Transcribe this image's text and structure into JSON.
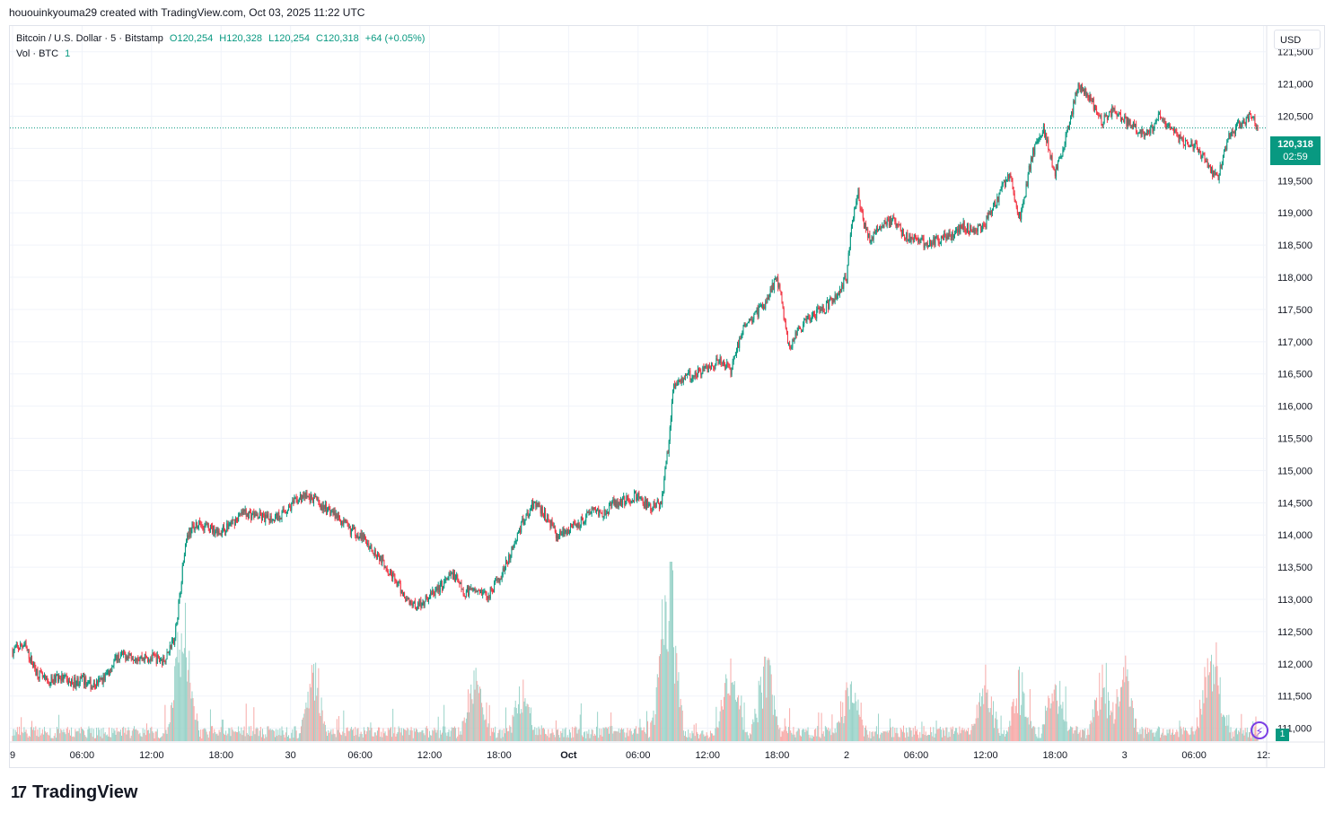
{
  "header": {
    "credit": "hououinkyouma29 created with TradingView.com, Oct 03, 2025 11:22 UTC"
  },
  "legend": {
    "symbol": "Bitcoin / U.S. Dollar · 5 · Bitstamp",
    "open": "O120,254",
    "high": "H120,328",
    "low": "L120,254",
    "close": "C120,318",
    "change": "+64 (+0.05%)",
    "volume_label": "Vol · BTC",
    "volume_value": "1"
  },
  "currency": "USD",
  "last_price": {
    "price": "120,318",
    "countdown": "02:59",
    "volume": "1"
  },
  "footer": {
    "brand": "TradingView",
    "brand_mark": "17"
  },
  "colors": {
    "up": "#089981",
    "down": "#f23645",
    "vol_up": "#9ad3c9",
    "vol_down": "#f7a9a7",
    "grid": "#f0f3fa",
    "text": "#131722"
  },
  "chart_data": {
    "type": "candlestick",
    "title": "Bitcoin / U.S. Dollar · 5 · Bitstamp",
    "ylim": [
      110800,
      121900
    ],
    "y_ticks": [
      111000,
      111500,
      112000,
      112500,
      113000,
      113500,
      114000,
      114500,
      115000,
      115500,
      116000,
      116500,
      117000,
      117500,
      118000,
      118500,
      119000,
      119500,
      120000,
      120500,
      121000,
      121500
    ],
    "y_tick_labels": [
      "111,000",
      "111,500",
      "112,000",
      "112,500",
      "113,000",
      "113,500",
      "114,000",
      "114,500",
      "115,000",
      "115,500",
      "116,000",
      "116,500",
      "117,000",
      "117,500",
      "118,000",
      "118,500",
      "119,000",
      "119,500",
      "120,000",
      "120,500",
      "121,000",
      "121,500"
    ],
    "x_ticks": [
      {
        "t": 0,
        "label": "9"
      },
      {
        "t": 6,
        "label": "06:00"
      },
      {
        "t": 12,
        "label": "12:00"
      },
      {
        "t": 18,
        "label": "18:00"
      },
      {
        "t": 24,
        "label": "30"
      },
      {
        "t": 30,
        "label": "06:00"
      },
      {
        "t": 36,
        "label": "12:00"
      },
      {
        "t": 42,
        "label": "18:00"
      },
      {
        "t": 48,
        "label": "Oct"
      },
      {
        "t": 54,
        "label": "06:00"
      },
      {
        "t": 60,
        "label": "12:00"
      },
      {
        "t": 66,
        "label": "18:00"
      },
      {
        "t": 72,
        "label": "2"
      },
      {
        "t": 78,
        "label": "06:00"
      },
      {
        "t": 84,
        "label": "12:00"
      },
      {
        "t": 90,
        "label": "18:00"
      },
      {
        "t": 96,
        "label": "3"
      },
      {
        "t": 102,
        "label": "06:00"
      },
      {
        "t": 108,
        "label": "12:"
      }
    ],
    "x_range_hours": [
      0,
      107.5
    ],
    "price_path": [
      [
        0,
        112200
      ],
      [
        1,
        112300
      ],
      [
        2,
        111900
      ],
      [
        3,
        111700
      ],
      [
        4,
        111800
      ],
      [
        5,
        111700
      ],
      [
        6,
        111750
      ],
      [
        7,
        111650
      ],
      [
        8,
        111800
      ],
      [
        9,
        112100
      ],
      [
        10,
        112150
      ],
      [
        11,
        112100
      ],
      [
        12,
        112100
      ],
      [
        13,
        112050
      ],
      [
        14,
        112400
      ],
      [
        14.5,
        113200
      ],
      [
        15,
        114000
      ],
      [
        16,
        114200
      ],
      [
        17,
        114100
      ],
      [
        18,
        114050
      ],
      [
        19,
        114200
      ],
      [
        20,
        114350
      ],
      [
        21,
        114300
      ],
      [
        22,
        114250
      ],
      [
        23,
        114300
      ],
      [
        24,
        114450
      ],
      [
        25,
        114600
      ],
      [
        26,
        114550
      ],
      [
        27,
        114400
      ],
      [
        28,
        114300
      ],
      [
        29,
        114100
      ],
      [
        30,
        114000
      ],
      [
        31,
        113800
      ],
      [
        32,
        113600
      ],
      [
        33,
        113300
      ],
      [
        34,
        113000
      ],
      [
        35,
        112900
      ],
      [
        36,
        113050
      ],
      [
        37,
        113200
      ],
      [
        38,
        113400
      ],
      [
        39,
        113100
      ],
      [
        40,
        113200
      ],
      [
        41,
        113050
      ],
      [
        42,
        113300
      ],
      [
        43,
        113700
      ],
      [
        44,
        114200
      ],
      [
        45,
        114500
      ],
      [
        46,
        114300
      ],
      [
        47,
        114000
      ],
      [
        48,
        114100
      ],
      [
        49,
        114200
      ],
      [
        50,
        114400
      ],
      [
        51,
        114350
      ],
      [
        52,
        114500
      ],
      [
        53,
        114550
      ],
      [
        54,
        114600
      ],
      [
        55,
        114400
      ],
      [
        56,
        114500
      ],
      [
        56.7,
        115500
      ],
      [
        57,
        116300
      ],
      [
        58,
        116450
      ],
      [
        59,
        116500
      ],
      [
        60,
        116600
      ],
      [
        61,
        116700
      ],
      [
        62,
        116550
      ],
      [
        63,
        117200
      ],
      [
        64,
        117400
      ],
      [
        65,
        117600
      ],
      [
        66,
        118000
      ],
      [
        66.7,
        117300
      ],
      [
        67,
        116900
      ],
      [
        68,
        117200
      ],
      [
        69,
        117400
      ],
      [
        70,
        117500
      ],
      [
        71,
        117700
      ],
      [
        72,
        118000
      ],
      [
        72.5,
        118900
      ],
      [
        73,
        119300
      ],
      [
        73.5,
        118800
      ],
      [
        74,
        118600
      ],
      [
        75,
        118800
      ],
      [
        76,
        118900
      ],
      [
        77,
        118650
      ],
      [
        78,
        118600
      ],
      [
        79,
        118500
      ],
      [
        80,
        118600
      ],
      [
        81,
        118650
      ],
      [
        82,
        118800
      ],
      [
        83,
        118700
      ],
      [
        84,
        118850
      ],
      [
        85,
        119200
      ],
      [
        86,
        119600
      ],
      [
        87,
        118900
      ],
      [
        88,
        119900
      ],
      [
        89,
        120300
      ],
      [
        90,
        119600
      ],
      [
        91,
        120200
      ],
      [
        92,
        121000
      ],
      [
        93,
        120800
      ],
      [
        94,
        120400
      ],
      [
        95,
        120600
      ],
      [
        96,
        120450
      ],
      [
        97,
        120300
      ],
      [
        98,
        120200
      ],
      [
        99,
        120500
      ],
      [
        100,
        120300
      ],
      [
        101,
        120100
      ],
      [
        102,
        120050
      ],
      [
        103,
        119800
      ],
      [
        104,
        119500
      ],
      [
        105,
        120200
      ],
      [
        106,
        120400
      ],
      [
        107,
        120500
      ],
      [
        107.5,
        120318
      ]
    ],
    "volume_spikes": [
      [
        14.5,
        0.55
      ],
      [
        15,
        0.4
      ],
      [
        26,
        0.45
      ],
      [
        40,
        0.45
      ],
      [
        44,
        0.35
      ],
      [
        56.8,
        1.0
      ],
      [
        56.2,
        0.5
      ],
      [
        62,
        0.55
      ],
      [
        65,
        0.6
      ],
      [
        72.3,
        0.45
      ],
      [
        84,
        0.45
      ],
      [
        87,
        0.4
      ],
      [
        90,
        0.5
      ],
      [
        94,
        0.4
      ],
      [
        96,
        0.5
      ],
      [
        103.2,
        0.45
      ],
      [
        104,
        0.4
      ]
    ],
    "last_price": 120318
  }
}
